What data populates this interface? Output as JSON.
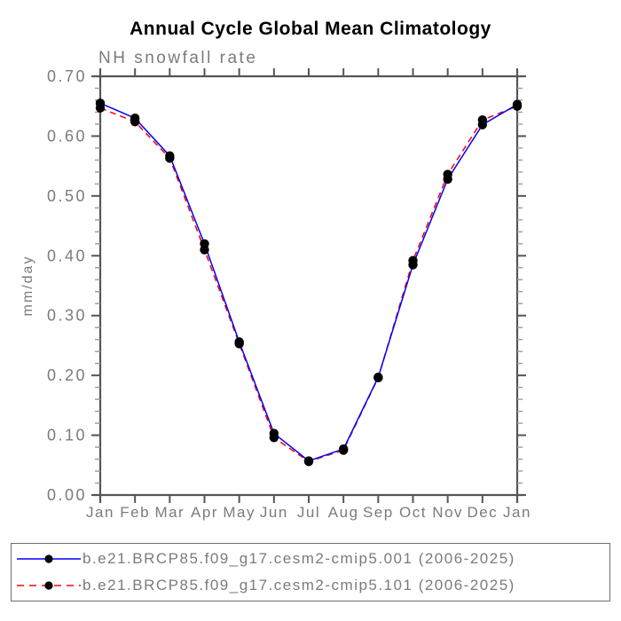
{
  "chart_data": {
    "type": "line",
    "title": "Annual Cycle Global Mean Climatology",
    "subtitle": "NH snowfall rate",
    "ylabel": "mm/day",
    "xlabel": "",
    "categories": [
      "Jan",
      "Feb",
      "Mar",
      "Apr",
      "May",
      "Jun",
      "Jul",
      "Aug",
      "Sep",
      "Oct",
      "Nov",
      "Dec",
      "Jan"
    ],
    "ylim": [
      0.0,
      0.7
    ],
    "y_major_ticks": [
      "0.00",
      "0.10",
      "0.20",
      "0.30",
      "0.40",
      "0.50",
      "0.60",
      "0.70"
    ],
    "y_minor_step": 0.02,
    "grid": false,
    "legend_position": "bottom",
    "series": [
      {
        "name": "b.e21.BRCP85.f09_g17.cesm2-cmip5.001 (2006-2025)",
        "color": "#0000ff",
        "line_style": "solid",
        "marker": "filled-circle",
        "marker_color": "#000000",
        "values": [
          0.655,
          0.63,
          0.567,
          0.42,
          0.256,
          0.103,
          0.057,
          0.077,
          0.197,
          0.385,
          0.528,
          0.619,
          0.653
        ]
      },
      {
        "name": "b.e21.BRCP85.f09_g17.cesm2-cmip5.101 (2006-2025)",
        "color": "#ff0000",
        "line_style": "dashed",
        "marker": "filled-circle",
        "marker_color": "#000000",
        "values": [
          0.647,
          0.624,
          0.563,
          0.41,
          0.253,
          0.096,
          0.056,
          0.075,
          0.196,
          0.392,
          0.536,
          0.627,
          0.65
        ]
      }
    ],
    "style": {
      "axis_color": "#555555",
      "minor_tick_color": "#9a9a9a",
      "tick_label_color": "#7b7b7b",
      "marker_radius": 5.2
    }
  }
}
